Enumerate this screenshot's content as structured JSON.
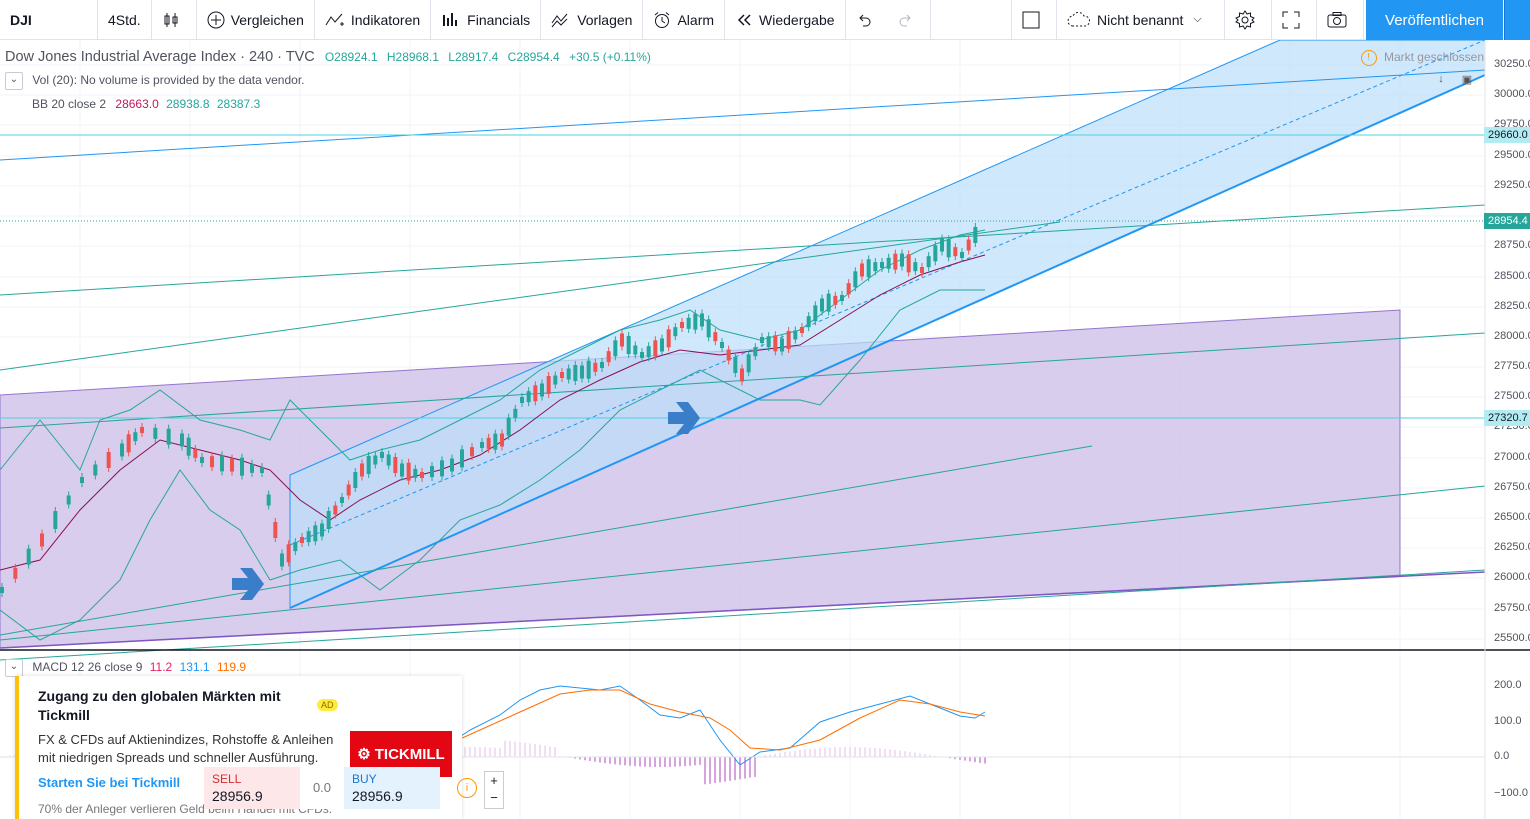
{
  "toolbar": {
    "symbol": "DJI",
    "interval": "4Std.",
    "compare": "Vergleichen",
    "indicators": "Indikatoren",
    "financials": "Financials",
    "templates": "Vorlagen",
    "alert": "Alarm",
    "replay": "Wiedergabe",
    "layout_name": "Nicht benannt",
    "publish": "Veröffentlichen"
  },
  "legend": {
    "title": "Dow Jones Industrial Average Index · 240 · TVC",
    "open": "O28924.1",
    "high": "H28968.1",
    "low": "L28917.4",
    "close": "C28954.4",
    "change": "+30.5 (+0.11%)",
    "vol": "Vol (20): No volume is provided by the data vendor.",
    "bb_label": "BB 20 close 2",
    "bb_basis": "28663.0",
    "bb_upper": "28938.8",
    "bb_lower": "28387.3",
    "macd_label": "MACD 12 26 close 9",
    "macd_hist": "11.2",
    "macd_line": "131.1",
    "macd_signal": "119.9",
    "market_status": "Markt geschlossen"
  },
  "price_axis": {
    "labels": [
      "30250.0",
      "30000.0",
      "29750.0",
      "29500.0",
      "29250.0",
      "28750.0",
      "28500.0",
      "28250.0",
      "28000.0",
      "27750.0",
      "27500.0",
      "27250.0",
      "27000.0",
      "26750.0",
      "26500.0",
      "26250.0",
      "26000.0",
      "25750.0",
      "25500.0"
    ],
    "tags": [
      {
        "value": "29660.0",
        "color": "#b2ebf2"
      },
      {
        "value": "28954.4",
        "color": "#26a69a"
      },
      {
        "value": "27320.7",
        "color": "#b2ebf2"
      }
    ],
    "macd_labels": [
      "200.0",
      "100.0",
      "0.0",
      "−100.0"
    ]
  },
  "ad": {
    "title": "Zugang zu den globalen Märkten mit Tickmill",
    "badge": "AD",
    "text": "FX & CFDs auf Aktienindizes, Rohstoffe & Anleihen mit niedrigen Spreads und schneller Ausführung.",
    "link": "Starten Sie bei Tickmill",
    "disclaimer": "70% der Anleger verlieren Geld beim Handel mit CFDs.",
    "logo": "TICKMILL"
  },
  "trade": {
    "sell_label": "SELL",
    "sell_price": "28956.9",
    "spread": "0.0",
    "buy_label": "BUY",
    "buy_price": "28956.9"
  },
  "colors": {
    "up": "#26a69a",
    "down": "#ef5350",
    "channel_fill": "#bbdefb",
    "purple_fill": "#d1c4e9",
    "accent": "#2196f3"
  }
}
